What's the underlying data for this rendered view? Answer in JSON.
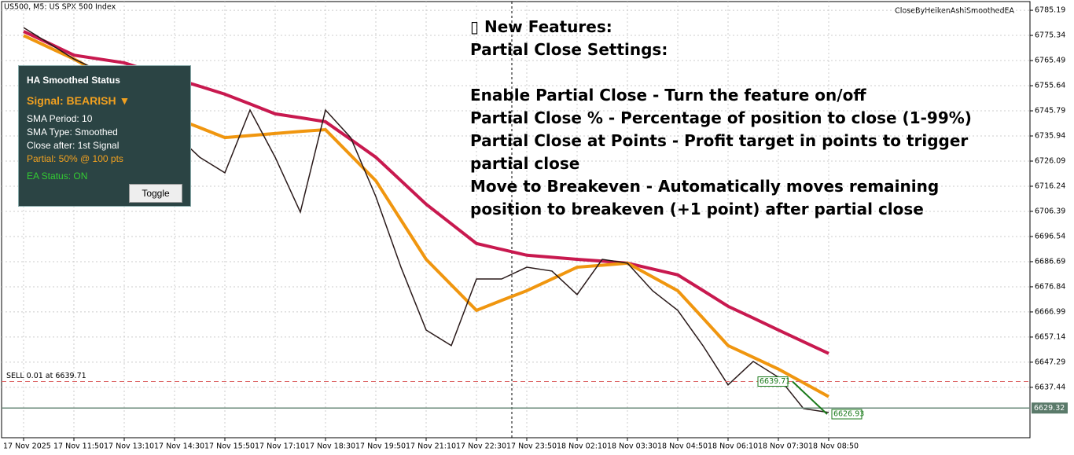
{
  "header": {
    "symbol": "US500, M5:  US SPX 500 Index",
    "ea_name": "CloseByHeikenAshiSmoothedEA"
  },
  "panel": {
    "title": "HA Smoothed Status",
    "signal": "Signal: BEARISH ▼",
    "lines": [
      "SMA Period: 10",
      "SMA Type: Smoothed",
      "Close after: 1st Signal"
    ],
    "partial": "Partial: 50% @ 100 pts",
    "status": "EA Status: ON",
    "button": "Toggle"
  },
  "annotation": {
    "heading": [
      "▯ New Features:",
      "Partial Close Settings:"
    ],
    "items": [
      "Enable Partial Close - Turn the feature on/off",
      "Partial Close % - Percentage of position to close (1-99%)",
      "Partial Close at Points - Profit target in points to trigger partial close",
      "Move to Breakeven - Automatically moves remaining position to breakeven (+1 point) after partial close"
    ]
  },
  "chart_data": {
    "type": "line",
    "grid": true,
    "categories": [
      "17 Nov 2025",
      null,
      "17 Nov 11:50",
      null,
      "17 Nov 13:10",
      null,
      "17 Nov 14:30",
      null,
      "17 Nov 15:50",
      null,
      "17 Nov 17:10",
      null,
      "17 Nov 18:30",
      null,
      "17 Nov 19:50",
      null,
      "17 Nov 21:10",
      null,
      "17 Nov 22:30",
      null,
      "17 Nov 23:50",
      null,
      "18 Nov 02:10",
      null,
      "18 Nov 03:30",
      null,
      "18 Nov 04:50",
      null,
      "18 Nov 06:10",
      null,
      "18 Nov 07:30",
      null,
      "18 Nov 08:50"
    ],
    "series": [
      {
        "color": "#c8194f",
        "values": [
          6776.9,
          6772.3,
          6767.6,
          6766.1,
          6764.6,
          6761.5,
          6758.4,
          6755.4,
          6752.3,
          6748.5,
          6744.6,
          6743.1,
          6741.5,
          6734.6,
          6727.6,
          6718.4,
          6709.2,
          6701.5,
          6693.8,
          6691.5,
          6689.2,
          6688.4,
          6687.6,
          6686.9,
          6686.1,
          6683.8,
          6681.5,
          6675.4,
          6669.2,
          6664.6,
          6659.9,
          6655.3,
          6650.7
        ]
      },
      {
        "color": "#f0960f",
        "values": [
          6775.3,
          6770.7,
          6766.1,
          6760.7,
          6755.3,
          6749.2,
          6743.0,
          6739.2,
          6735.3,
          6736.1,
          6736.9,
          6737.7,
          6738.4,
          6728.4,
          6718.4,
          6703.0,
          6687.6,
          6677.6,
          6667.6,
          6671.5,
          6675.3,
          6679.9,
          6684.5,
          6685.3,
          6686.1,
          6680.7,
          6675.3,
          6664.6,
          6653.8,
          6649.2,
          6644.6,
          6639.2,
          6633.8
        ]
      },
      {
        "color": "#2a1a1a",
        "values": [
          6778.4,
          6772.3,
          6766.1,
          6761.5,
          6758.4,
          6749.2,
          6736.9,
          6727.6,
          6721.5,
          6746.1,
          6727.6,
          6706.1,
          6746.1,
          6735.3,
          6712.2,
          6684.5,
          6659.9,
          6653.8,
          6679.9,
          6679.9,
          6684.5,
          6683.0,
          6673.8,
          6687.6,
          6686.1,
          6675.3,
          6667.6,
          6653.8,
          6638.4,
          6647.6,
          6641.4,
          6629.1,
          6627.6
        ]
      }
    ],
    "ylim": [
      6617.7,
      6788.6
    ],
    "yticks": [
      6785.19,
      6775.34,
      6765.49,
      6755.64,
      6745.79,
      6735.94,
      6726.09,
      6716.24,
      6706.39,
      6696.54,
      6686.69,
      6676.84,
      6666.99,
      6657.14,
      6647.29,
      6637.44
    ],
    "sell_line": {
      "label": "SELL 0.01 at 6639.71",
      "value": 6639.71
    },
    "trade": {
      "open": 6639.71,
      "close": 6626.93
    },
    "bid": 6629.32
  }
}
